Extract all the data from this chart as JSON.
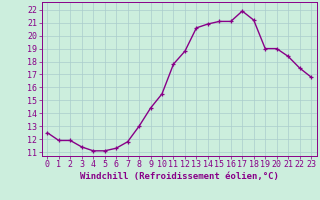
{
  "x": [
    0,
    1,
    2,
    3,
    4,
    5,
    6,
    7,
    8,
    9,
    10,
    11,
    12,
    13,
    14,
    15,
    16,
    17,
    18,
    19,
    20,
    21,
    22,
    23
  ],
  "y": [
    12.5,
    11.9,
    11.9,
    11.4,
    11.1,
    11.1,
    11.3,
    11.8,
    13.0,
    14.4,
    15.5,
    17.8,
    18.8,
    20.6,
    20.9,
    21.1,
    21.1,
    21.9,
    21.2,
    19.0,
    19.0,
    18.4,
    17.5,
    16.8
  ],
  "line_color": "#880088",
  "bg_color": "#cceedd",
  "grid_color": "#aacccc",
  "xlabel": "Windchill (Refroidissement éolien,°C)",
  "ylabel_ticks": [
    11,
    12,
    13,
    14,
    15,
    16,
    17,
    18,
    19,
    20,
    21,
    22
  ],
  "ylim": [
    10.7,
    22.6
  ],
  "xlim": [
    -0.5,
    23.5
  ],
  "xtick_labels": [
    "0",
    "1",
    "2",
    "3",
    "4",
    "5",
    "6",
    "7",
    "8",
    "9",
    "10",
    "11",
    "12",
    "13",
    "14",
    "15",
    "16",
    "17",
    "18",
    "19",
    "20",
    "21",
    "22",
    "23"
  ],
  "marker": "+",
  "marker_size": 3.5,
  "line_width": 1.0,
  "xlabel_fontsize": 6.5,
  "tick_fontsize": 6.0
}
